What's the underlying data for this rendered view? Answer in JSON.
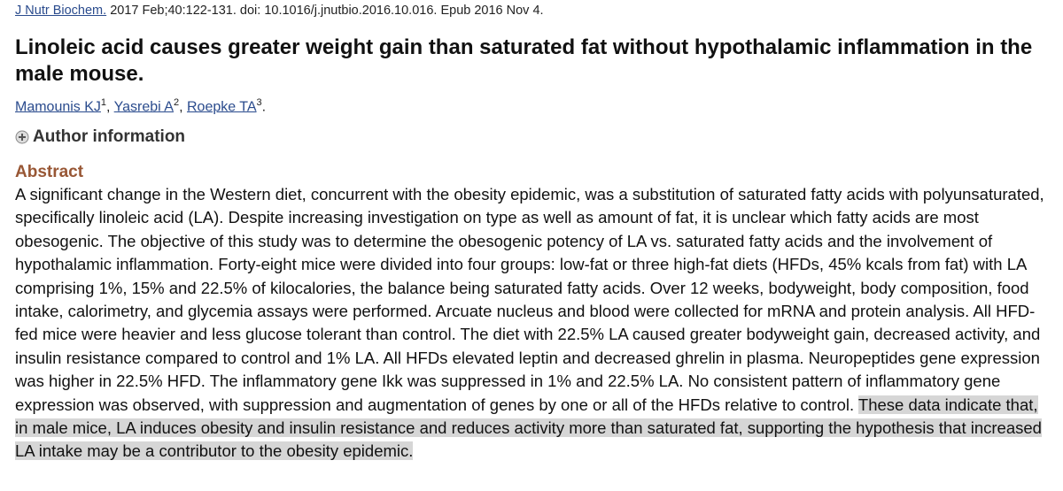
{
  "citation": {
    "journal": "J Nutr Biochem.",
    "details": "2017 Feb;40:122-131. doi: 10.1016/j.jnutbio.2016.10.016. Epub 2016 Nov 4."
  },
  "title": "Linoleic acid causes greater weight gain than saturated fat without hypothalamic inflammation in the male mouse.",
  "authors": [
    {
      "name": "Mamounis KJ",
      "affiliation": 1,
      "punctuation": ","
    },
    {
      "name": "Yasrebi A",
      "affiliation": 2,
      "punctuation": ","
    },
    {
      "name": "Roepke TA",
      "affiliation": 3,
      "punctuation": "."
    }
  ],
  "author_information": "Author information",
  "abstract": {
    "heading": "Abstract",
    "text": "A significant change in the Western diet, concurrent with the obesity epidemic, was a substitution of saturated fatty acids with polyunsaturated, specifically linoleic acid (LA). Despite increasing investigation on type as well as amount of fat, it is unclear which fatty acids are most obesogenic. The objective of this study was to determine the obesogenic potency of LA vs. saturated fatty acids and the involvement of hypothalamic inflammation. Forty-eight mice were divided into four groups: low-fat or three high-fat diets (HFDs, 45% kcals from fat) with LA comprising 1%, 15% and 22.5% of kilocalories, the balance being saturated fatty acids. Over 12 weeks, bodyweight, body composition, food intake, calorimetry, and glycemia assays were performed. Arcuate nucleus and blood were collected for mRNA and protein analysis. All HFD-fed mice were heavier and less glucose tolerant than control. The diet with 22.5% LA caused greater bodyweight gain, decreased activity, and insulin resistance compared to control and 1% LA. All HFDs elevated leptin and decreased ghrelin in plasma. Neuropeptides gene expression was higher in 22.5% HFD. The inflammatory gene Ikk was suppressed in 1% and 22.5% LA. No consistent pattern of inflammatory gene expression was observed, with suppression and augmentation of genes by one or all of the HFDs relative to control.",
    "highlighted_text": "These data indicate that, in male mice, LA induces obesity and insulin resistance and reduces activity more than saturated fat, supporting the hypothesis that increased LA intake may be a contributor to the obesity epidemic."
  }
}
